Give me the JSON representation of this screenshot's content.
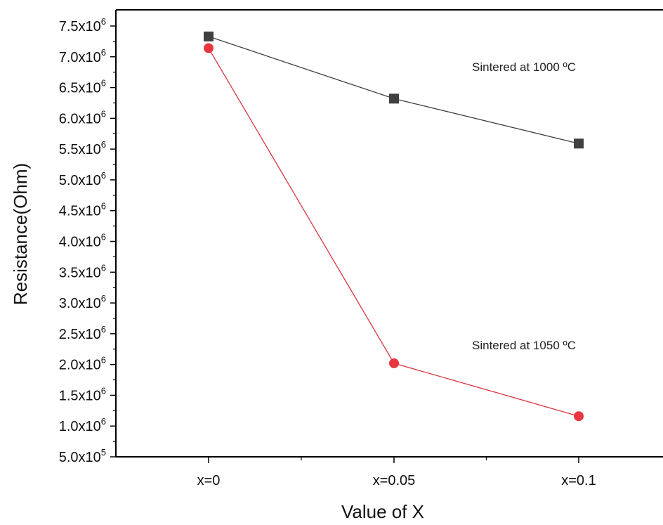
{
  "chart_data": {
    "type": "line",
    "title": "",
    "xlabel": "Value of X",
    "ylabel": "Resistance(Ohm)",
    "categories": [
      "x=0",
      "x=0.05",
      "x=0.1"
    ],
    "ylim": [
      500000,
      7500000
    ],
    "y_ticks": [
      {
        "value": 500000,
        "mantissa": "5.0x10",
        "exp": "5"
      },
      {
        "value": 1000000,
        "mantissa": "1.0x10",
        "exp": "6"
      },
      {
        "value": 1500000,
        "mantissa": "1.5x10",
        "exp": "6"
      },
      {
        "value": 2000000,
        "mantissa": "2.0x10",
        "exp": "6"
      },
      {
        "value": 2500000,
        "mantissa": "2.5x10",
        "exp": "6"
      },
      {
        "value": 3000000,
        "mantissa": "3.0x10",
        "exp": "6"
      },
      {
        "value": 3500000,
        "mantissa": "3.5x10",
        "exp": "6"
      },
      {
        "value": 4000000,
        "mantissa": "4.0x10",
        "exp": "6"
      },
      {
        "value": 4500000,
        "mantissa": "4.5x10",
        "exp": "6"
      },
      {
        "value": 5000000,
        "mantissa": "5.0x10",
        "exp": "6"
      },
      {
        "value": 5500000,
        "mantissa": "5.5x10",
        "exp": "6"
      },
      {
        "value": 6000000,
        "mantissa": "6.0x10",
        "exp": "6"
      },
      {
        "value": 6500000,
        "mantissa": "6.5x10",
        "exp": "6"
      },
      {
        "value": 7000000,
        "mantissa": "7.0x10",
        "exp": "6"
      },
      {
        "value": 7500000,
        "mantissa": "7.5x10",
        "exp": "6"
      }
    ],
    "grid": false,
    "legend": "none",
    "series": [
      {
        "label": "Sintered at 1000 ºC",
        "values": [
          7330000,
          6320000,
          5590000
        ],
        "marker": "square",
        "marker_color": "#404040",
        "line_color": "#404040",
        "label_at": {
          "x": 2,
          "y": 6770000
        }
      },
      {
        "label": "Sintered at 1050 ºC",
        "values": [
          7140000,
          2020000,
          1160000
        ],
        "marker": "circle",
        "marker_color": "#e8353f",
        "line_color": "#d9363e",
        "label_at": {
          "x": 2,
          "y": 2250000
        }
      }
    ]
  }
}
